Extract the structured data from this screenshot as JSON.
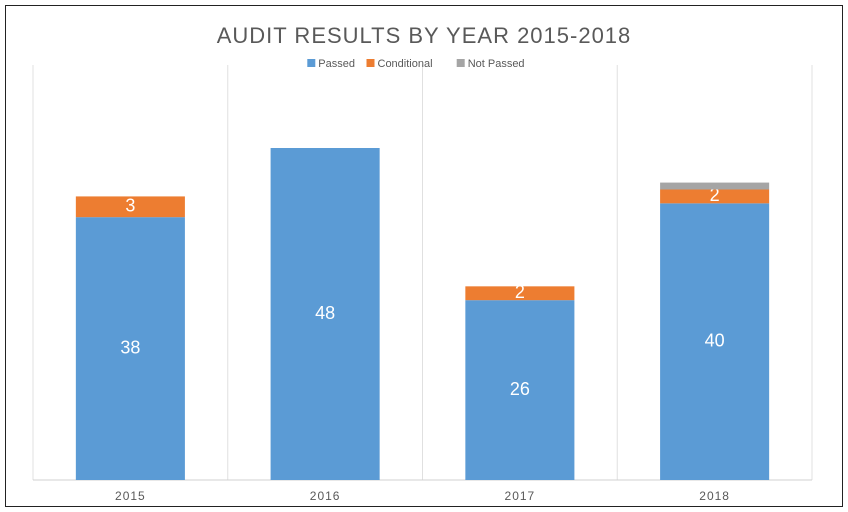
{
  "chart_data": {
    "type": "stacked_bar",
    "title": "AUDIT RESULTS BY YEAR 2015-2018",
    "categories": [
      "2015",
      "2016",
      "2017",
      "2018"
    ],
    "series": [
      {
        "name": "Passed",
        "color": "#5b9bd5",
        "values": [
          38,
          48,
          26,
          40
        ],
        "data_labels": true
      },
      {
        "name": "Conditional",
        "color": "#ed7d31",
        "values": [
          3,
          0,
          2,
          2
        ],
        "data_labels": true
      },
      {
        "name": "Not Passed",
        "color": "#a5a5a5",
        "values": [
          0,
          0,
          0,
          1
        ],
        "data_labels": false
      }
    ],
    "ylim": [
      0,
      60
    ],
    "legend": "top"
  }
}
